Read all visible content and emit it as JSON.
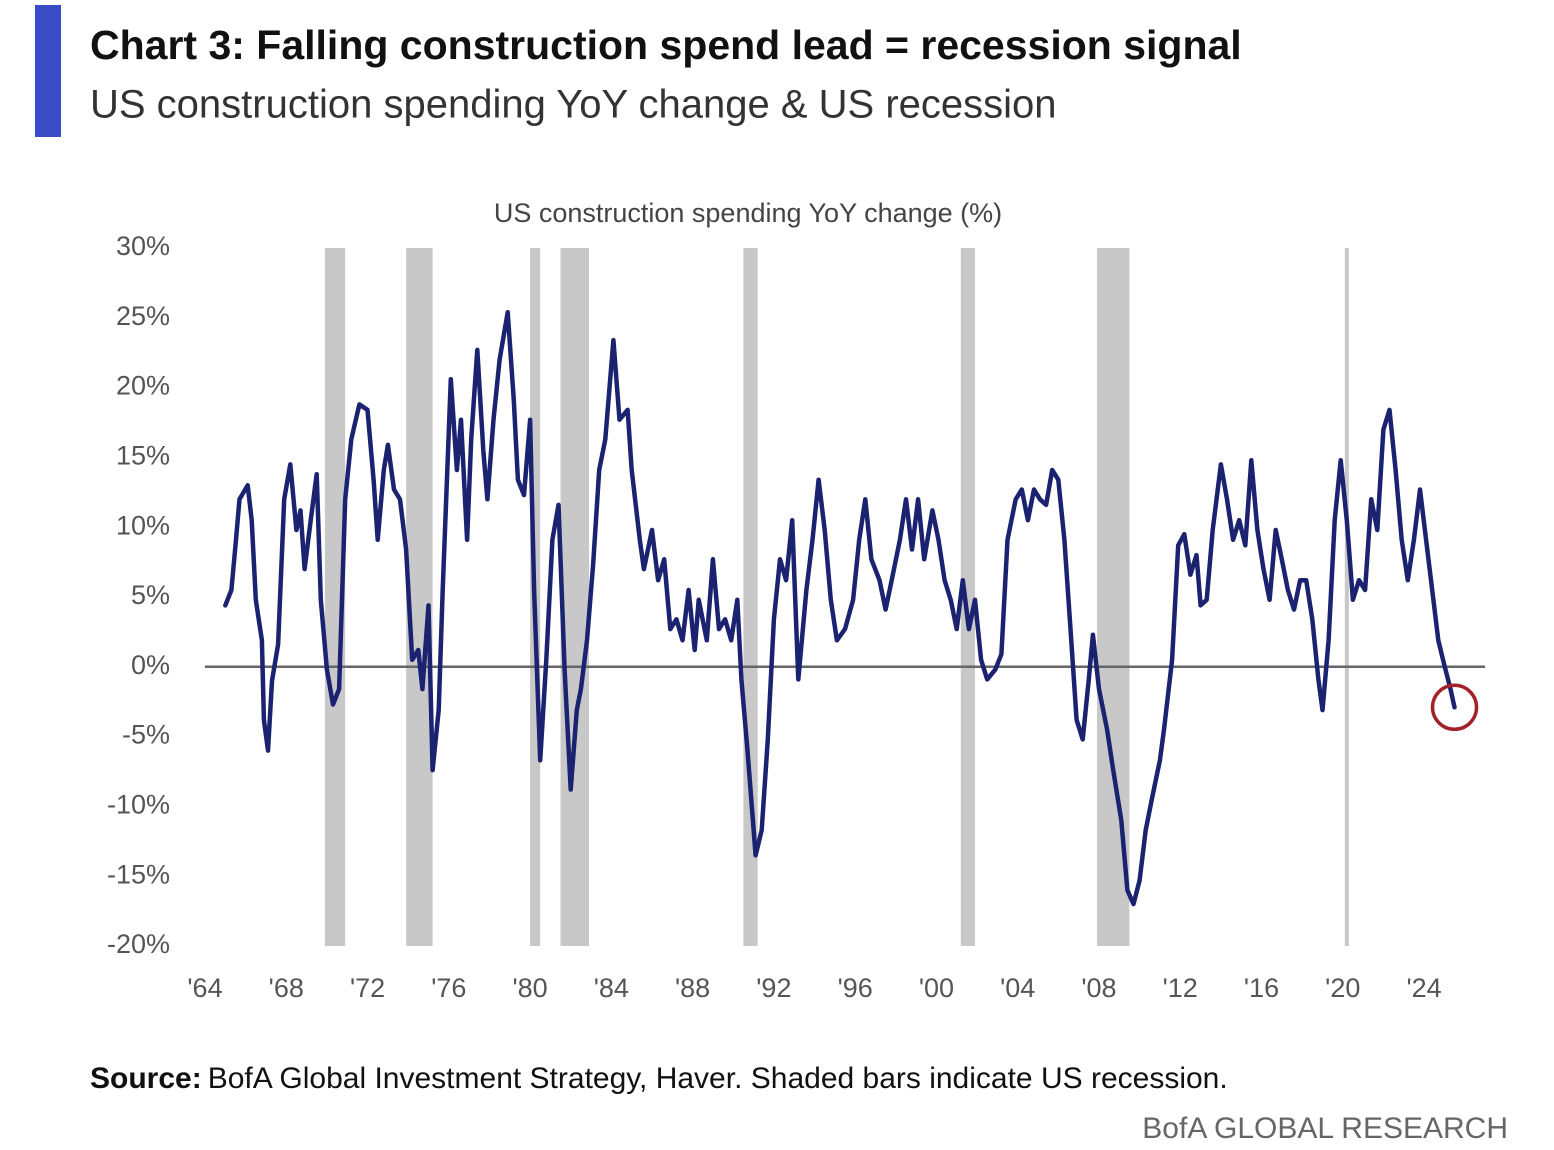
{
  "chart_data": {
    "type": "line",
    "title": "Chart 3: Falling construction spend lead = recession signal",
    "subtitle": "US construction spending YoY change & US recession",
    "chart_title": "US construction spending YoY change (%)",
    "source_label": "Source:",
    "source_text": "BofA Global Investment Strategy, Haver. Shaded bars indicate US recession.",
    "footer": "BofA GLOBAL RESEARCH",
    "xlim": [
      1964,
      2027
    ],
    "ylim": [
      -20,
      30
    ],
    "xticks": [
      {
        "value": 1964,
        "label": "'64"
      },
      {
        "value": 1968,
        "label": "'68"
      },
      {
        "value": 1972,
        "label": "'72"
      },
      {
        "value": 1976,
        "label": "'76"
      },
      {
        "value": 1980,
        "label": "'80"
      },
      {
        "value": 1984,
        "label": "'84"
      },
      {
        "value": 1988,
        "label": "'88"
      },
      {
        "value": 1992,
        "label": "'92"
      },
      {
        "value": 1996,
        "label": "'96"
      },
      {
        "value": 2000,
        "label": "'00"
      },
      {
        "value": 2004,
        "label": "'04"
      },
      {
        "value": 2008,
        "label": "'08"
      },
      {
        "value": 2012,
        "label": "'12"
      },
      {
        "value": 2016,
        "label": "'16"
      },
      {
        "value": 2020,
        "label": "'20"
      },
      {
        "value": 2024,
        "label": "'24"
      }
    ],
    "yticks": [
      {
        "value": 30,
        "label": "30%"
      },
      {
        "value": 25,
        "label": "25%"
      },
      {
        "value": 20,
        "label": "20%"
      },
      {
        "value": 15,
        "label": "15%"
      },
      {
        "value": 10,
        "label": "10%"
      },
      {
        "value": 5,
        "label": "5%"
      },
      {
        "value": 0,
        "label": "0%"
      },
      {
        "value": -5,
        "label": "-5%"
      },
      {
        "value": -10,
        "label": "-10%"
      },
      {
        "value": -15,
        "label": "-15%"
      },
      {
        "value": -20,
        "label": "-20%"
      }
    ],
    "recessions": [
      [
        1969.9,
        1970.9
      ],
      [
        1973.9,
        1975.2
      ],
      [
        1980.0,
        1980.5
      ],
      [
        1981.5,
        1982.9
      ],
      [
        1990.5,
        1991.2
      ],
      [
        2001.2,
        2001.9
      ],
      [
        2007.9,
        2009.5
      ],
      [
        2020.1,
        2020.3
      ]
    ],
    "recession_color": "#c8c8c8",
    "series": [
      {
        "name": "US construction spending YoY change",
        "color": "#1b2370",
        "x": [
          1965.0,
          1965.3,
          1965.5,
          1965.7,
          1966.1,
          1966.3,
          1966.5,
          1966.8,
          1966.9,
          1967.1,
          1967.3,
          1967.6,
          1967.9,
          1968.2,
          1968.5,
          1968.7,
          1968.9,
          1969.2,
          1969.5,
          1969.7,
          1970.0,
          1970.3,
          1970.6,
          1970.9,
          1971.2,
          1971.6,
          1972.0,
          1972.3,
          1972.5,
          1972.8,
          1973.0,
          1973.3,
          1973.6,
          1973.9,
          1974.2,
          1974.5,
          1974.7,
          1975.0,
          1975.2,
          1975.5,
          1975.7,
          1976.1,
          1976.4,
          1976.6,
          1976.9,
          1977.1,
          1977.4,
          1977.7,
          1977.9,
          1978.2,
          1978.5,
          1978.9,
          1979.2,
          1979.4,
          1979.7,
          1980.0,
          1980.2,
          1980.5,
          1980.8,
          1981.1,
          1981.4,
          1981.7,
          1982.0,
          1982.3,
          1982.5,
          1982.8,
          1983.1,
          1983.4,
          1983.7,
          1984.1,
          1984.4,
          1984.8,
          1985.0,
          1985.4,
          1985.6,
          1986.0,
          1986.3,
          1986.6,
          1986.9,
          1987.2,
          1987.5,
          1987.8,
          1988.1,
          1988.3,
          1988.7,
          1989.0,
          1989.3,
          1989.6,
          1989.9,
          1990.2,
          1990.4,
          1990.7,
          1991.1,
          1991.4,
          1991.7,
          1992.0,
          1992.3,
          1992.6,
          1992.9,
          1993.2,
          1993.6,
          1993.9,
          1994.2,
          1994.5,
          1994.8,
          1995.1,
          1995.5,
          1995.9,
          1996.2,
          1996.5,
          1996.8,
          1997.2,
          1997.5,
          1997.8,
          1998.2,
          1998.5,
          1998.8,
          1999.1,
          1999.4,
          1999.8,
          2000.1,
          2000.4,
          2000.7,
          2001.0,
          2001.3,
          2001.6,
          2001.9,
          2002.2,
          2002.5,
          2002.9,
          2003.2,
          2003.5,
          2003.9,
          2004.2,
          2004.5,
          2004.8,
          2005.1,
          2005.4,
          2005.7,
          2006.0,
          2006.3,
          2006.6,
          2006.9,
          2007.2,
          2007.5,
          2007.7,
          2008.0,
          2008.4,
          2008.7,
          2009.1,
          2009.4,
          2009.7,
          2010.0,
          2010.3,
          2010.6,
          2011.0,
          2011.2,
          2011.6,
          2011.9,
          2012.2,
          2012.5,
          2012.8,
          2013.0,
          2013.3,
          2013.6,
          2014.0,
          2014.3,
          2014.6,
          2014.9,
          2015.2,
          2015.5,
          2015.8,
          2016.1,
          2016.4,
          2016.7,
          2017.0,
          2017.3,
          2017.6,
          2017.9,
          2018.2,
          2018.5,
          2018.8,
          2019.0,
          2019.3,
          2019.6,
          2019.9,
          2020.2,
          2020.5,
          2020.8,
          2021.1,
          2021.4,
          2021.7,
          2022.0,
          2022.3,
          2022.6,
          2022.9,
          2023.2,
          2023.5,
          2023.8,
          2024.1,
          2024.4,
          2024.7,
          2025.0,
          2025.3,
          2025.5
        ],
        "values": [
          4.4,
          5.5,
          8.7,
          12,
          13,
          10.5,
          4.8,
          1.9,
          -3.8,
          -6,
          -1,
          1.6,
          12,
          14.5,
          9.8,
          11.2,
          7,
          10.5,
          13.8,
          4.8,
          -0.2,
          -2.7,
          -1.6,
          12,
          16.3,
          18.8,
          18.4,
          13.4,
          9.1,
          14.1,
          15.9,
          12.7,
          12,
          8.4,
          0.5,
          1.2,
          -1.6,
          4.4,
          -7.4,
          -3.1,
          5.5,
          20.6,
          14.1,
          17.7,
          9.1,
          16.3,
          22.7,
          15.5,
          12,
          17.7,
          22,
          25.4,
          19.1,
          13.4,
          12.3,
          17.7,
          5.5,
          -6.7,
          0.5,
          9.1,
          11.6,
          -0.2,
          -8.8,
          -3.1,
          -1.6,
          1.9,
          7.3,
          14.1,
          16.3,
          23.4,
          17.7,
          18.4,
          14.1,
          9.1,
          7,
          9.8,
          6.2,
          7.7,
          2.7,
          3.4,
          1.9,
          5.5,
          1.2,
          4.8,
          1.9,
          7.7,
          2.7,
          3.4,
          1.9,
          4.8,
          -0.9,
          -6,
          -13.5,
          -11.7,
          -5.2,
          3.4,
          7.7,
          6.2,
          10.5,
          -0.9,
          5.5,
          9.1,
          13.4,
          9.8,
          4.8,
          1.9,
          2.7,
          4.8,
          9.1,
          12,
          7.7,
          6.2,
          4.1,
          6.2,
          9.1,
          12,
          8.4,
          12,
          7.7,
          11.2,
          9.1,
          6.2,
          4.8,
          2.7,
          6.2,
          2.7,
          4.8,
          0.5,
          -0.9,
          -0.2,
          0.9,
          9.1,
          12,
          12.7,
          10.5,
          12.7,
          12,
          11.6,
          14.1,
          13.4,
          9.1,
          2.7,
          -3.8,
          -5.2,
          -0.9,
          2.3,
          -1.6,
          -4.5,
          -7.4,
          -11,
          -16,
          -17,
          -15.3,
          -11.7,
          -9.5,
          -6.7,
          -4.5,
          0.5,
          8.7,
          9.5,
          6.6,
          8,
          4.4,
          4.8,
          9.8,
          14.5,
          12,
          9.1,
          10.5,
          8.7,
          14.8,
          9.8,
          7,
          4.8,
          9.8,
          7.7,
          5.5,
          4.1,
          6.2,
          6.2,
          3.4,
          -0.9,
          -3.1,
          1.9,
          10.5,
          14.8,
          10.5,
          4.8,
          6.2,
          5.5,
          12,
          9.8,
          17,
          18.4,
          14.1,
          9.1,
          6.2,
          9.1,
          12.7,
          9.1,
          5.5,
          1.9,
          0.1,
          -1.6,
          -2.9
        ]
      }
    ]
  }
}
